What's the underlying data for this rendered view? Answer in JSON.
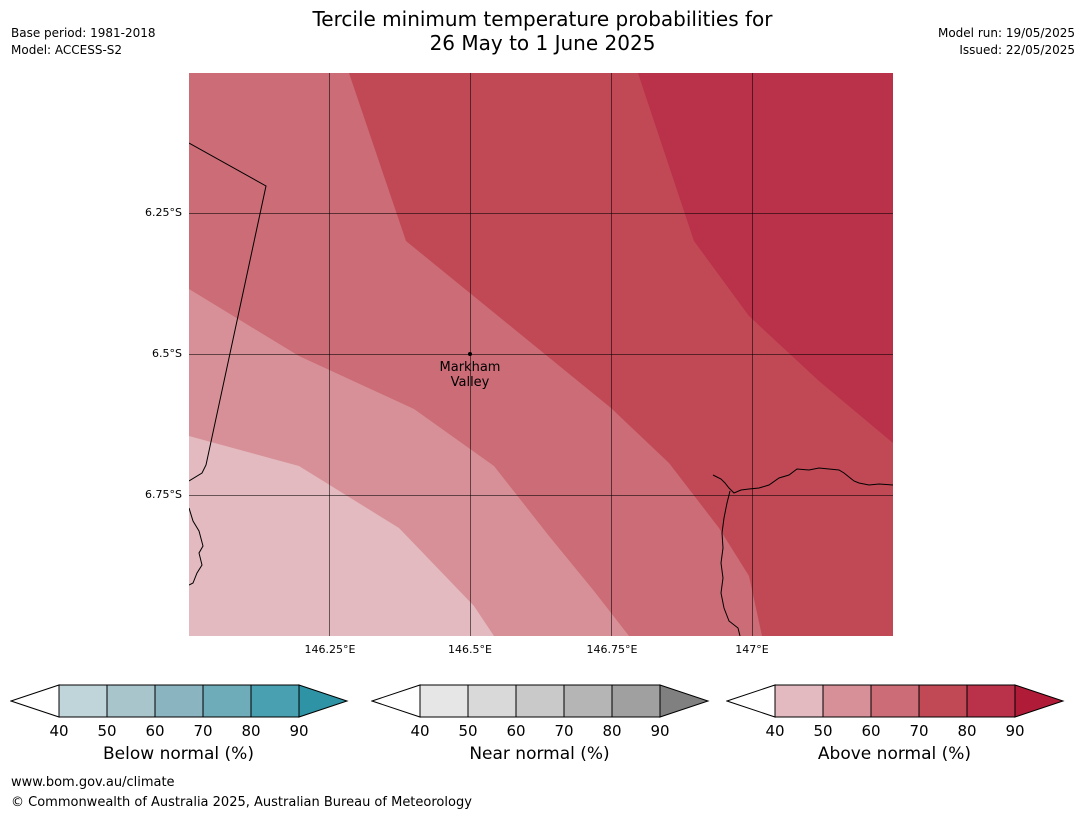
{
  "title_line1": "Tercile minimum temperature probabilities for",
  "title_line2": "26 May to 1 June 2025",
  "meta_left": {
    "base_period": "Base period: 1981-2018",
    "model": "Model: ACCESS-S2"
  },
  "meta_right": {
    "model_run": "Model run: 19/05/2025",
    "issued": "Issued: 22/05/2025"
  },
  "map": {
    "lat_labels": [
      "6.25°S",
      "6.5°S",
      "6.75°S"
    ],
    "lon_labels": [
      "146.25°E",
      "146.5°E",
      "146.75°E",
      "147°E"
    ],
    "place": {
      "line1": "Markham",
      "line2": "Valley"
    },
    "band_colors": [
      "#e2babf",
      "#d79097",
      "#cb6c76",
      "#c04955",
      "#ba314a",
      "#b01c38"
    ]
  },
  "colorbars": [
    {
      "label": "Below normal (%)",
      "ticks": [
        "40",
        "50",
        "60",
        "70",
        "80",
        "90"
      ],
      "colors": [
        "#bfd5da",
        "#a7c5cb",
        "#8ab5c0",
        "#6eacb9",
        "#48a0b0",
        "#2d93a5"
      ]
    },
    {
      "label": "Near normal (%)",
      "ticks": [
        "40",
        "50",
        "60",
        "70",
        "80",
        "90"
      ],
      "colors": [
        "#e6e6e6",
        "#d9d9d9",
        "#c9c9c9",
        "#b5b5b5",
        "#a0a0a0",
        "#808080"
      ]
    },
    {
      "label": "Above normal (%)",
      "ticks": [
        "40",
        "50",
        "60",
        "70",
        "80",
        "90"
      ],
      "colors": [
        "#e2babf",
        "#d79097",
        "#cb6c76",
        "#c04955",
        "#ba314a",
        "#b01c38"
      ]
    }
  ],
  "footer": {
    "url": "www.bom.gov.au/climate",
    "copyright": "© Commonwealth of Australia 2025, Australian Bureau of Meteorology"
  }
}
